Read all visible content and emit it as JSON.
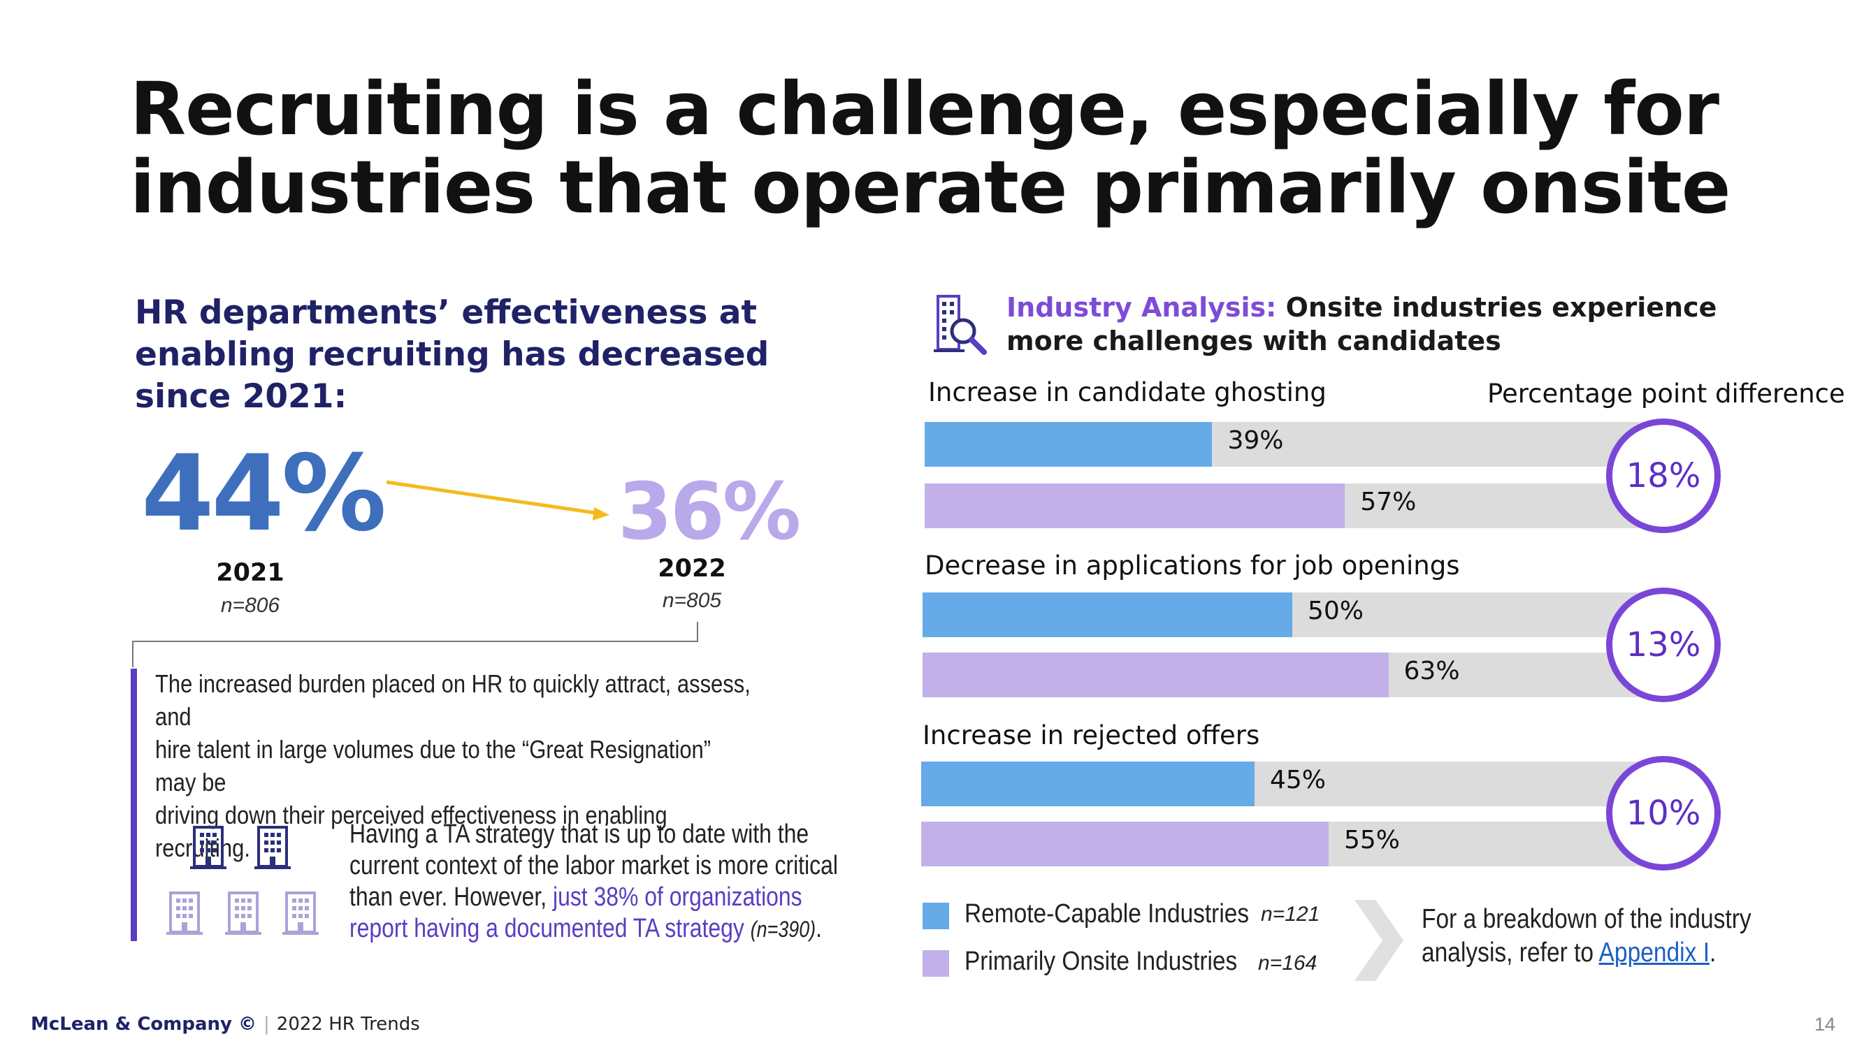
{
  "slide": {
    "title_line1": "Recruiting is a challenge, especially for",
    "title_line2": "industries that operate primarily onsite"
  },
  "left_panel": {
    "heading_line1": "HR departments’ effectiveness at",
    "heading_line2": "enabling recruiting has decreased",
    "heading_line3": "since 2021:",
    "stat_2021": {
      "value": "44%",
      "year": "2021",
      "n": "n=806"
    },
    "stat_2022": {
      "value": "36%",
      "year": "2022",
      "n": "n=805"
    },
    "paragraph_line1": "The increased burden placed on HR to quickly attract, assess, and",
    "paragraph_line2": "hire talent in large volumes due to the “Great Resignation” may be",
    "paragraph_line3": "driving down their perceived effectiveness in enabling recruiting.",
    "ta_line1": "Having a TA strategy that is up to date with the",
    "ta_line2": "current context of the labor market is more critical",
    "ta_line3_plain": "than ever. However,",
    "ta_line3_highlight": "just 38% of organizations",
    "ta_line4_highlight": "report having a documented TA strategy",
    "ta_line4_n": "(n=390)",
    "ta_line4_end": "."
  },
  "right_panel": {
    "heading_highlight": "Industry Analysis:",
    "heading_line1_rest": "Onsite industries experience",
    "heading_line2": "more challenges with candidates",
    "difference_title": "Percentage point difference",
    "legend": {
      "remote_label": "Remote-Capable Industries",
      "remote_n": "n=121",
      "onsite_label": "Primarily Onsite Industries",
      "onsite_n": "n=164"
    },
    "note_line1": "For a breakdown of the industry",
    "note_line2_plain": "analysis, refer to",
    "note_link": "Appendix I",
    "note_end": "."
  },
  "colors": {
    "remote": "#66aae8",
    "onsite": "#c2b1e8",
    "track": "#dcdcdc",
    "accent": "#7a46d8",
    "navy": "#1f2266"
  },
  "chart_data": {
    "type": "bar",
    "orientation": "horizontal",
    "xlim": [
      0,
      100
    ],
    "series_names": [
      "Remote-Capable Industries",
      "Primarily Onsite Industries"
    ],
    "groups": [
      {
        "title": "Increase in candidate ghosting",
        "remote": 39,
        "onsite": 57,
        "remote_label": "39%",
        "onsite_label": "57%",
        "difference": "18%"
      },
      {
        "title": "Decrease in applications for job openings",
        "remote": 50,
        "onsite": 63,
        "remote_label": "50%",
        "onsite_label": "63%",
        "difference": "13%"
      },
      {
        "title": "Increase in rejected offers",
        "remote": 45,
        "onsite": 55,
        "remote_label": "45%",
        "onsite_label": "55%",
        "difference": "10%"
      }
    ]
  },
  "footer": {
    "company": "McLean & Company ©",
    "separator": "|",
    "report": "2022 HR Trends",
    "page_number": "14"
  }
}
